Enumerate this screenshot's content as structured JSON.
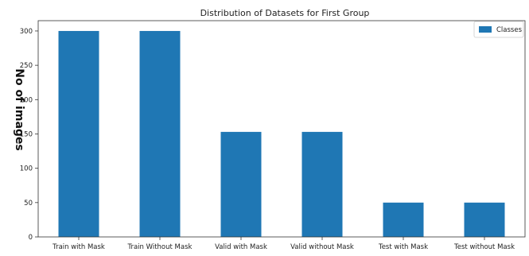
{
  "chart_data": {
    "type": "bar",
    "title": "Distribution of Datasets for First Group",
    "xlabel": "",
    "ylabel": "No of images",
    "categories": [
      "Train with Mask",
      "Train Without Mask",
      "Valid with Mask",
      "Valid without Mask",
      "Test with Mask",
      "Test without Mask"
    ],
    "series": [
      {
        "name": "Classes",
        "values": [
          300,
          300,
          153,
          153,
          50,
          50
        ]
      }
    ],
    "ylim": [
      0,
      315
    ],
    "yticks": [
      0,
      50,
      100,
      150,
      200,
      250,
      300
    ],
    "grid": false,
    "legend_position": "top-right",
    "colors": {
      "bar": "#1f77b4"
    }
  }
}
